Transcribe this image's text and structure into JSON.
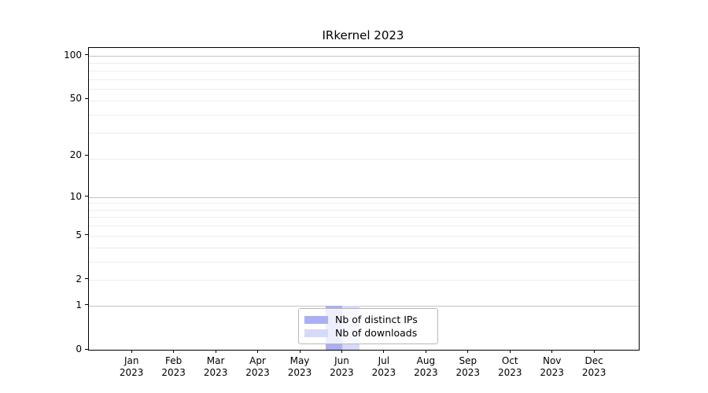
{
  "figure": {
    "background": "#ffffff"
  },
  "chart_data": {
    "type": "bar",
    "title": "IRkernel 2023",
    "x": {
      "categories": [
        "Jan",
        "Feb",
        "Mar",
        "Apr",
        "May",
        "Jun",
        "Jul",
        "Aug",
        "Sep",
        "Oct",
        "Nov",
        "Dec"
      ],
      "year_label": "2023"
    },
    "series": [
      {
        "name": "Nb of distinct IPs",
        "color": "#aab0f1",
        "values": [
          0,
          0,
          0,
          0,
          0,
          1,
          0,
          0,
          0,
          0,
          0,
          0
        ]
      },
      {
        "name": "Nb of downloads",
        "color": "#d6d9f8",
        "values": [
          0,
          0,
          0,
          0,
          0,
          1,
          0,
          0,
          0,
          0,
          0,
          0
        ]
      }
    ],
    "y_axis": {
      "scale": "log1p",
      "tick_values": [
        0,
        1,
        2,
        5,
        10,
        20,
        50,
        100
      ],
      "top_value": 113,
      "major_gridlines": [
        1,
        10,
        100
      ],
      "minor_gridlines": [
        2,
        3,
        4,
        5,
        6,
        7,
        8,
        9,
        19,
        29,
        39,
        49,
        59,
        69,
        79,
        89
      ],
      "major_grid_color": "#c3c3c3",
      "minor_grid_color": "#ededed"
    },
    "legend": {
      "position": "lower-center",
      "background": "rgba(255,255,255,0.8)",
      "border_color": "#b9b9b9"
    }
  }
}
